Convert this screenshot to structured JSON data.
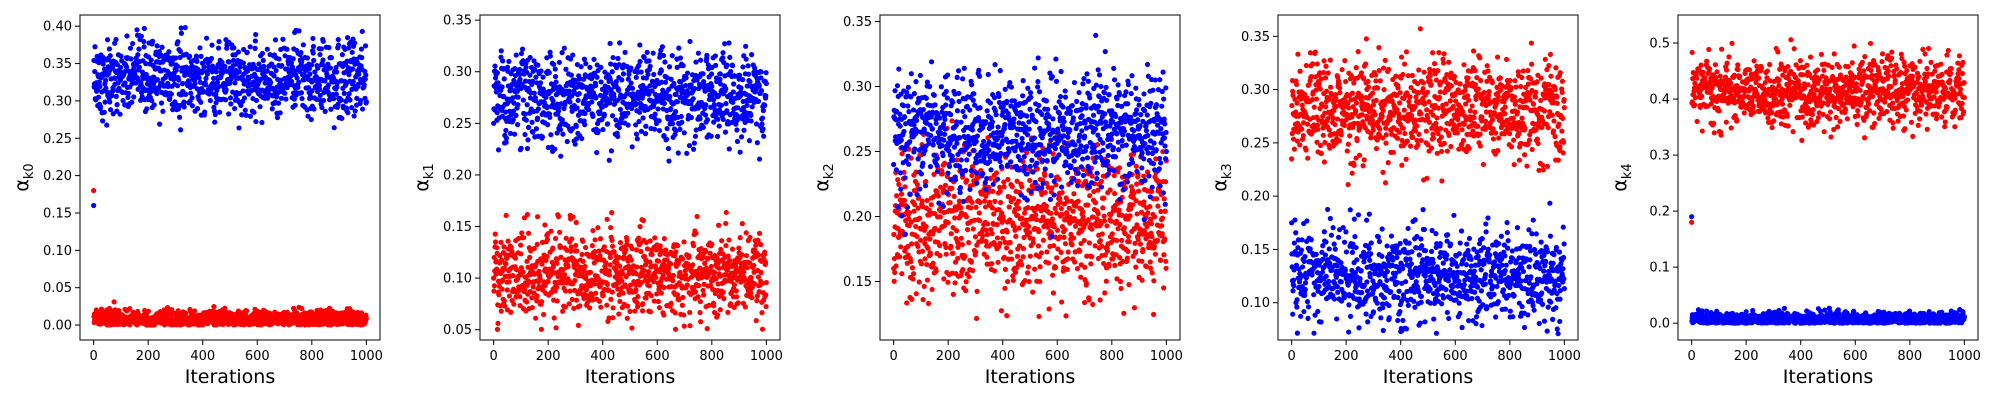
{
  "chart_data": [
    {
      "type": "scatter",
      "xlabel": "Iterations",
      "ylabel": "α",
      "ylabel_sub": "k0",
      "xlim": [
        -50,
        1050
      ],
      "ylim": [
        -0.02,
        0.415
      ],
      "xticks": [
        0,
        200,
        400,
        600,
        800,
        1000
      ],
      "yticks": [
        0.0,
        0.05,
        0.1,
        0.15,
        0.2,
        0.25,
        0.3,
        0.35,
        0.4
      ],
      "ytick_labels": [
        "0.00",
        "0.05",
        "0.10",
        "0.15",
        "0.20",
        "0.25",
        "0.30",
        "0.35",
        "0.40"
      ],
      "series": [
        {
          "color": "#0000ff",
          "initial_value": 0.16,
          "mean": 0.33,
          "spread": 0.025,
          "min": 0.25,
          "max": 0.4
        },
        {
          "color": "#ff0000",
          "initial_value": 0.18,
          "mean": 0.008,
          "spread": 0.006,
          "min": 0.0,
          "max": 0.04
        }
      ]
    },
    {
      "type": "scatter",
      "xlabel": "Iterations",
      "ylabel": "α",
      "ylabel_sub": "k1",
      "xlim": [
        -50,
        1050
      ],
      "ylim": [
        0.04,
        0.355
      ],
      "xticks": [
        0,
        200,
        400,
        600,
        800,
        1000
      ],
      "yticks": [
        0.05,
        0.1,
        0.15,
        0.2,
        0.25,
        0.3,
        0.35
      ],
      "ytick_labels": [
        "0.05",
        "0.10",
        "0.15",
        "0.20",
        "0.25",
        "0.30",
        "0.35"
      ],
      "series": [
        {
          "color": "#0000ff",
          "initial_value": 0.25,
          "mean": 0.275,
          "spread": 0.022,
          "min": 0.21,
          "max": 0.35
        },
        {
          "color": "#ff0000",
          "initial_value": 0.1,
          "mean": 0.105,
          "spread": 0.02,
          "min": 0.05,
          "max": 0.17
        }
      ]
    },
    {
      "type": "scatter",
      "xlabel": "Iterations",
      "ylabel": "α",
      "ylabel_sub": "k2",
      "xlim": [
        -50,
        1050
      ],
      "ylim": [
        0.105,
        0.355
      ],
      "xticks": [
        0,
        200,
        400,
        600,
        800,
        1000
      ],
      "yticks": [
        0.15,
        0.2,
        0.25,
        0.3,
        0.35
      ],
      "ytick_labels": [
        "0.15",
        "0.20",
        "0.25",
        "0.30",
        "0.35"
      ],
      "series": [
        {
          "color": "#ff0000",
          "initial_value": 0.16,
          "mean": 0.195,
          "spread": 0.028,
          "min": 0.12,
          "max": 0.28
        },
        {
          "color": "#0000ff",
          "initial_value": 0.24,
          "mean": 0.265,
          "spread": 0.022,
          "min": 0.18,
          "max": 0.345
        }
      ]
    },
    {
      "type": "scatter",
      "xlabel": "Iterations",
      "ylabel": "α",
      "ylabel_sub": "k3",
      "xlim": [
        -50,
        1050
      ],
      "ylim": [
        0.065,
        0.37
      ],
      "xticks": [
        0,
        200,
        400,
        600,
        800,
        1000
      ],
      "yticks": [
        0.1,
        0.15,
        0.2,
        0.25,
        0.3,
        0.35
      ],
      "ytick_labels": [
        "0.10",
        "0.15",
        "0.20",
        "0.25",
        "0.30",
        "0.35"
      ],
      "series": [
        {
          "color": "#0000ff",
          "initial_value": 0.175,
          "mean": 0.127,
          "spread": 0.022,
          "min": 0.07,
          "max": 0.195
        },
        {
          "color": "#ff0000",
          "initial_value": 0.235,
          "mean": 0.28,
          "spread": 0.025,
          "min": 0.21,
          "max": 0.36
        }
      ]
    },
    {
      "type": "scatter",
      "xlabel": "Iterations",
      "ylabel": "α",
      "ylabel_sub": "k4",
      "xlim": [
        -50,
        1050
      ],
      "ylim": [
        -0.03,
        0.55
      ],
      "xticks": [
        0,
        200,
        400,
        600,
        800,
        1000
      ],
      "yticks": [
        0.0,
        0.1,
        0.2,
        0.3,
        0.4,
        0.5
      ],
      "ytick_labels": [
        "0.0",
        "0.1",
        "0.2",
        "0.3",
        "0.4",
        "0.5"
      ],
      "series": [
        {
          "color": "#0000ff",
          "initial_value": 0.19,
          "mean": 0.008,
          "spread": 0.006,
          "min": 0.0,
          "max": 0.04
        },
        {
          "color": "#ff0000",
          "initial_value": 0.18,
          "mean": 0.415,
          "spread": 0.03,
          "min": 0.31,
          "max": 0.52
        }
      ]
    }
  ]
}
